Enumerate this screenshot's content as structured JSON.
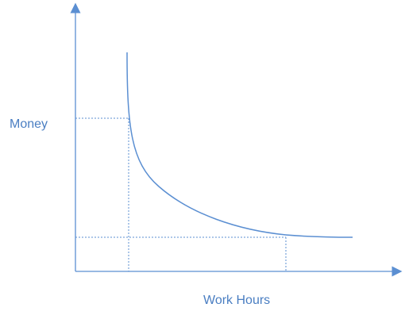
{
  "diagram": {
    "y_axis_label": "Money",
    "x_axis_label": "Work Hours",
    "line_color": "#5b8fd2",
    "text_color": "#4a7ec2"
  }
}
